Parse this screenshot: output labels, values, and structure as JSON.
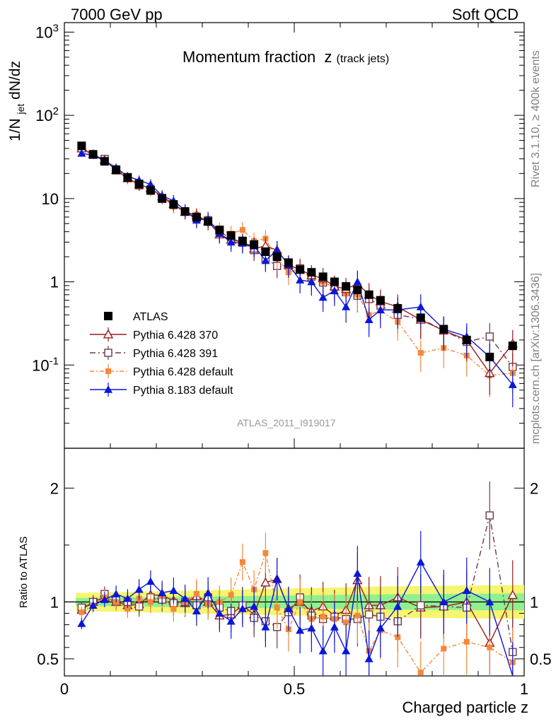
{
  "header": {
    "left": "7000 GeV pp",
    "right": "Soft QCD"
  },
  "side_labels": {
    "rivet": "Rivet 3.1.10, ≥ 400k events",
    "mcplots": "mcplots.cern.ch [arXiv:1306.3436]"
  },
  "watermark": "ATLAS_2011_I919017",
  "colors": {
    "atlas": "#000000",
    "p370": "#9b1b1b",
    "p391": "#6b3a4a",
    "pdefault": "#f5883a",
    "p8": "#0a17d8",
    "band_inner": "#8ff08f",
    "band_outer": "#f5f570"
  },
  "chart_data": {
    "type": "scatter",
    "title": "Momentum fraction",
    "title_var": "z",
    "title_sub": "(track jets)",
    "ylabel": "1/N_jet dN/dz",
    "ylabel_main": "1/N",
    "ylabel_sub": "jet",
    "ylabel_tail": " dN/dz",
    "xlabel": "Charged particle z",
    "ratio_ylabel": "Ratio to ATLAS",
    "xlim": [
      0,
      1
    ],
    "ylim": [
      0.01,
      1300
    ],
    "yscale": "log",
    "ratio_ylim": [
      0.35,
      2.35
    ],
    "x_ticks": [
      "0",
      "0.5",
      "1"
    ],
    "y_ticks": [
      "10^-1",
      "1",
      "10",
      "10^2",
      "10^3"
    ],
    "ratio_ticks": [
      "0.5",
      "1",
      "2"
    ],
    "x": [
      0.0375,
      0.0625,
      0.0875,
      0.1125,
      0.1375,
      0.1625,
      0.1875,
      0.2125,
      0.2375,
      0.2625,
      0.2875,
      0.3125,
      0.3375,
      0.3625,
      0.3875,
      0.4125,
      0.4375,
      0.4625,
      0.4875,
      0.5125,
      0.5375,
      0.5625,
      0.5875,
      0.6125,
      0.6375,
      0.6625,
      0.6875,
      0.725,
      0.775,
      0.825,
      0.875,
      0.925,
      0.975
    ],
    "legend": [
      "ATLAS",
      "Pythia 6.428 370",
      "Pythia 6.428 391",
      "Pythia 6.428 default",
      "Pythia 8.183 default"
    ],
    "series": [
      {
        "name": "ATLAS",
        "key": "atlas",
        "values": [
          43,
          34,
          28,
          22,
          18,
          15,
          12.5,
          10,
          8.5,
          7,
          6,
          5.3,
          4.2,
          3.6,
          3.1,
          2.8,
          2.3,
          2.0,
          1.7,
          1.4,
          1.3,
          1.15,
          1.0,
          0.88,
          0.8,
          0.7,
          0.6,
          0.48,
          0.37,
          0.27,
          0.2,
          0.125,
          0.17
        ]
      },
      {
        "name": "Pythia 6.428 370",
        "key": "p370",
        "values": [
          40,
          34,
          29,
          22,
          17.5,
          14.7,
          13.3,
          10.6,
          8.6,
          6.9,
          6.3,
          5.3,
          3.7,
          3.2,
          3.0,
          2.5,
          2.7,
          2.4,
          1.6,
          1.4,
          1.2,
          1.1,
          0.88,
          0.82,
          0.95,
          0.7,
          0.58,
          0.5,
          0.35,
          0.26,
          0.2,
          0.08,
          0.18
        ]
      },
      {
        "name": "Pythia 6.428 391",
        "key": "p391",
        "values": [
          41,
          34,
          30,
          22.5,
          18,
          14.4,
          13,
          10.2,
          8.4,
          7,
          5.8,
          5.5,
          4.0,
          3.3,
          3.0,
          2.4,
          1.9,
          1.55,
          1.55,
          1.45,
          1.15,
          0.98,
          0.87,
          0.75,
          0.68,
          0.62,
          0.52,
          0.4,
          0.36,
          0.26,
          0.19,
          0.22,
          0.095
        ]
      },
      {
        "name": "Pythia 6.428 default",
        "key": "pdefault",
        "values": [
          39,
          33,
          29,
          22,
          17,
          15.5,
          12.5,
          10.5,
          8,
          7,
          6.4,
          5.2,
          4.2,
          3.8,
          4.2,
          3.1,
          3.3,
          1.9,
          1.3,
          1.4,
          1.1,
          1.0,
          0.85,
          0.72,
          0.7,
          0.4,
          0.45,
          0.33,
          0.14,
          0.16,
          0.13,
          0.075,
          0.08
        ]
      },
      {
        "name": "Pythia 8.183 default",
        "key": "p8",
        "values": [
          35,
          33,
          28.5,
          23.5,
          18.5,
          16.6,
          14.8,
          10.8,
          9.4,
          7.2,
          5.5,
          5.7,
          3.8,
          3.0,
          2.9,
          2.7,
          1.8,
          2.4,
          1.6,
          1.05,
          1.0,
          0.65,
          0.78,
          0.5,
          1.0,
          0.35,
          0.46,
          0.46,
          0.5,
          0.27,
          0.22,
          0.125,
          0.058
        ]
      }
    ],
    "ratio_series": [
      {
        "name": "Pythia 6.428 370",
        "key": "p370",
        "values": [
          0.93,
          1.0,
          1.04,
          1.0,
          0.97,
          0.98,
          1.06,
          1.06,
          1.01,
          0.99,
          1.05,
          1.0,
          0.88,
          0.89,
          0.97,
          0.89,
          1.17,
          1.2,
          0.94,
          1.0,
          0.92,
          0.96,
          0.88,
          0.93,
          1.19,
          0.97,
          0.97,
          1.04,
          0.95,
          0.96,
          1.0,
          0.64,
          1.06
        ]
      },
      {
        "name": "Pythia 6.428 391",
        "key": "p391",
        "values": [
          0.95,
          1.0,
          1.07,
          1.02,
          1.0,
          0.96,
          1.04,
          1.02,
          0.99,
          1.0,
          0.97,
          1.04,
          0.95,
          0.92,
          0.97,
          0.86,
          0.83,
          0.78,
          0.91,
          1.04,
          0.88,
          0.85,
          0.87,
          0.85,
          0.85,
          0.89,
          0.87,
          0.83,
          0.97,
          0.96,
          0.95,
          1.76,
          0.56
        ]
      },
      {
        "name": "Pythia 6.428 default",
        "key": "pdefault",
        "values": [
          0.91,
          0.97,
          1.04,
          1.0,
          0.94,
          1.03,
          1.0,
          1.05,
          0.94,
          1.0,
          1.07,
          0.98,
          1.0,
          1.06,
          1.35,
          1.11,
          1.43,
          0.95,
          0.76,
          1.0,
          0.85,
          0.87,
          0.85,
          0.82,
          0.88,
          0.57,
          0.75,
          0.69,
          0.38,
          0.59,
          0.65,
          0.6,
          0.47
        ]
      },
      {
        "name": "Pythia 8.183 default",
        "key": "p8",
        "values": [
          0.81,
          0.97,
          1.02,
          1.07,
          1.03,
          1.11,
          1.18,
          1.08,
          1.1,
          1.03,
          0.92,
          1.08,
          0.9,
          0.83,
          0.94,
          0.96,
          0.78,
          1.2,
          0.94,
          0.75,
          0.77,
          0.57,
          0.78,
          0.57,
          1.25,
          0.5,
          0.77,
          0.96,
          1.35,
          1.0,
          1.1,
          1.0,
          0.34
        ]
      }
    ]
  }
}
